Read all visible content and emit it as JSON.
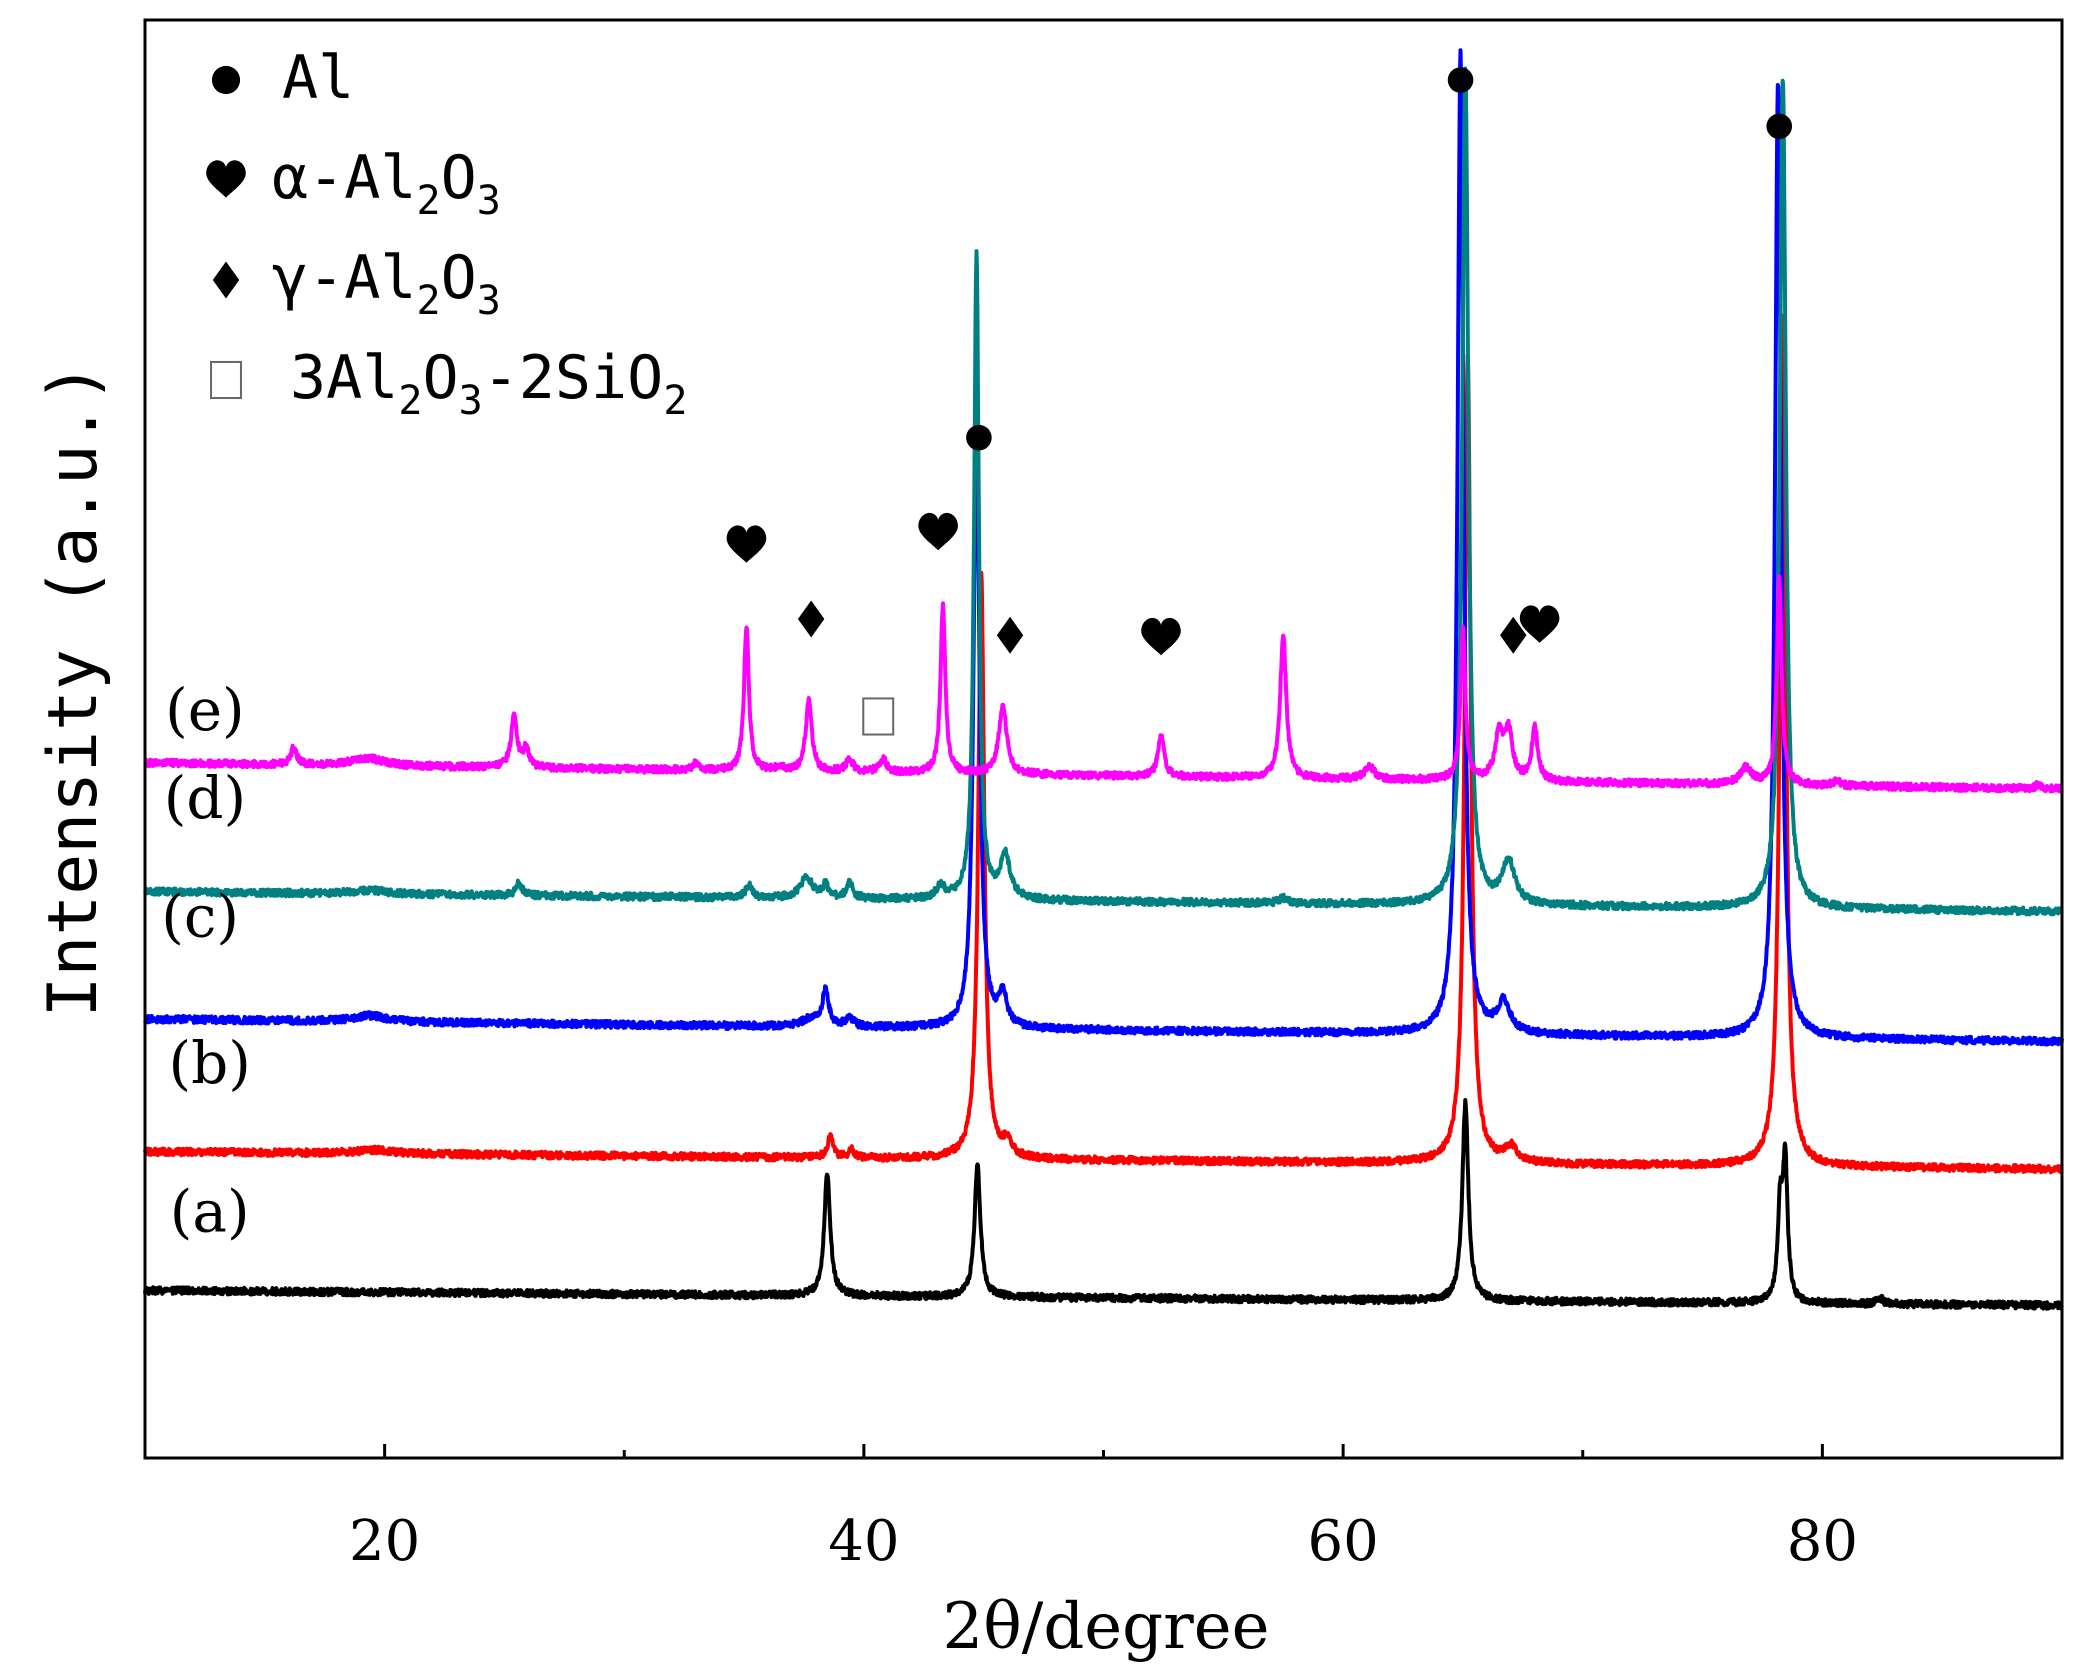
{
  "chart_data": {
    "type": "line",
    "title": "",
    "xlabel": "2θ/degree",
    "ylabel": "Intensity (a.u.)",
    "xlim": [
      10,
      90
    ],
    "ylim": [
      0,
      115
    ],
    "xticks": [
      20,
      40,
      60,
      80
    ],
    "xtick_minor": [
      30,
      50,
      70
    ],
    "yticks": [],
    "grid": false,
    "legend": {
      "placement": "top-left",
      "entries": [
        {
          "marker": "circle",
          "text": "Al",
          "base": "Al",
          "parts": []
        },
        {
          "marker": "heart",
          "text": "α-Al2O3",
          "base": "α-Al",
          "parts": [
            [
              "2",
              "O"
            ],
            [
              "3",
              ""
            ]
          ]
        },
        {
          "marker": "diamond",
          "text": "γ-Al2O3",
          "base": "γ-Al",
          "parts": [
            [
              "2",
              "O"
            ],
            [
              "3",
              ""
            ]
          ]
        },
        {
          "marker": "square",
          "text": "3Al2O3-2SiO2",
          "base": "3Al",
          "parts": [
            [
              "2",
              "O"
            ],
            [
              "3",
              "-2SiO"
            ],
            [
              "2",
              ""
            ]
          ]
        }
      ]
    },
    "series": [
      {
        "name": "(a)",
        "color": "#000000",
        "baseline_start": 13.4,
        "baseline_end": 12.2,
        "peaks": [
          [
            38.47,
            9.8,
            0.15
          ],
          [
            44.74,
            10.5,
            0.15
          ],
          [
            65.1,
            15.8,
            0.15
          ],
          [
            78.24,
            7.2,
            0.12
          ],
          [
            78.45,
            10.8,
            0.12
          ],
          [
            82.4,
            0.5,
            0.15
          ]
        ]
      },
      {
        "name": "(b)",
        "color": "#ff0000",
        "baseline_start": 24.5,
        "baseline_end": 23.1,
        "peaks": [
          [
            19.6,
            0.3,
            1.0
          ],
          [
            38.6,
            1.6,
            0.15
          ],
          [
            39.5,
            0.6,
            0.15
          ],
          [
            44.9,
            46.7,
            0.15
          ],
          [
            46.0,
            1.3,
            0.2
          ],
          [
            65.2,
            64.5,
            0.15
          ],
          [
            67.0,
            1.2,
            0.3
          ],
          [
            78.35,
            68.2,
            0.15
          ]
        ]
      },
      {
        "name": "(c)",
        "color": "#0000ff",
        "baseline_start": 35.1,
        "baseline_end": 33.3,
        "peaks": [
          [
            19.4,
            0.5,
            0.8
          ],
          [
            37.8,
            0.6,
            0.5
          ],
          [
            38.4,
            2.8,
            0.15
          ],
          [
            39.4,
            0.7,
            0.2
          ],
          [
            44.7,
            49.3,
            0.15
          ],
          [
            45.8,
            2.5,
            0.2
          ],
          [
            64.9,
            78.4,
            0.15
          ],
          [
            66.7,
            2.5,
            0.3
          ],
          [
            78.15,
            76.5,
            0.15
          ]
        ]
      },
      {
        "name": "(d)",
        "color": "#008080",
        "baseline_start": 45.3,
        "baseline_end": 43.7,
        "peaks": [
          [
            19.4,
            0.3,
            0.8
          ],
          [
            25.6,
            1.0,
            0.15
          ],
          [
            35.2,
            1.0,
            0.15
          ],
          [
            37.6,
            1.7,
            0.3
          ],
          [
            38.4,
            1.0,
            0.15
          ],
          [
            39.4,
            1.3,
            0.15
          ],
          [
            43.2,
            1.0,
            0.2
          ],
          [
            44.7,
            51.5,
            0.12
          ],
          [
            45.9,
            3.4,
            0.25
          ],
          [
            57.5,
            0.4,
            0.2
          ],
          [
            65.1,
            67.0,
            0.15
          ],
          [
            66.9,
            3.5,
            0.3
          ],
          [
            78.35,
            66.5,
            0.15
          ]
        ]
      },
      {
        "name": "(e)",
        "color": "#ff00ff",
        "baseline_start": 55.6,
        "baseline_end": 53.5,
        "peaks": [
          [
            16.2,
            1.3,
            0.15
          ],
          [
            19.3,
            0.6,
            0.8
          ],
          [
            25.4,
            4.0,
            0.15
          ],
          [
            25.9,
            1.5,
            0.15
          ],
          [
            33.0,
            0.6,
            0.15
          ],
          [
            35.1,
            11.6,
            0.12
          ],
          [
            36.5,
            0.4,
            0.15
          ],
          [
            37.7,
            5.8,
            0.15
          ],
          [
            39.4,
            0.9,
            0.2
          ],
          [
            40.8,
            1.0,
            0.2
          ],
          [
            43.3,
            13.5,
            0.12
          ],
          [
            45.8,
            5.4,
            0.2
          ],
          [
            52.4,
            3.3,
            0.15
          ],
          [
            57.5,
            11.5,
            0.15
          ],
          [
            61.1,
            1.0,
            0.25
          ],
          [
            65.0,
            12.0,
            0.12
          ],
          [
            66.5,
            3.5,
            0.2
          ],
          [
            66.9,
            3.8,
            0.2
          ],
          [
            68.0,
            4.2,
            0.15
          ],
          [
            76.8,
            1.3,
            0.3
          ],
          [
            78.2,
            16.5,
            0.12
          ],
          [
            80.6,
            0.4,
            0.15
          ],
          [
            89.0,
            0.3,
            0.15
          ]
        ]
      }
    ],
    "annotations": [
      {
        "symbol": "circle",
        "x": 44.8,
        "y": 81.6
      },
      {
        "symbol": "circle",
        "x": 64.9,
        "y": 110.2
      },
      {
        "symbol": "circle",
        "x": 78.2,
        "y": 106.5
      },
      {
        "symbol": "heart",
        "x": 35.1,
        "y": 73.0
      },
      {
        "symbol": "heart",
        "x": 43.1,
        "y": 74.0
      },
      {
        "symbol": "heart",
        "x": 52.4,
        "y": 65.6
      },
      {
        "symbol": "heart",
        "x": 68.2,
        "y": 66.6
      },
      {
        "symbol": "diamond",
        "x": 37.8,
        "y": 67.1
      },
      {
        "symbol": "diamond",
        "x": 46.1,
        "y": 65.8
      },
      {
        "symbol": "diamond",
        "x": 67.1,
        "y": 65.8
      },
      {
        "symbol": "square",
        "x": 40.6,
        "y": 59.3
      }
    ],
    "series_labels": [
      {
        "text": "(e)",
        "x": 12.5,
        "y": 58.2
      },
      {
        "text": "(d)",
        "x": 12.5,
        "y": 51.2
      },
      {
        "text": "(c)",
        "x": 12.3,
        "y": 41.7
      },
      {
        "text": "(b)",
        "x": 12.7,
        "y": 30.0
      },
      {
        "text": "(a)",
        "x": 12.7,
        "y": 18.1
      }
    ]
  }
}
